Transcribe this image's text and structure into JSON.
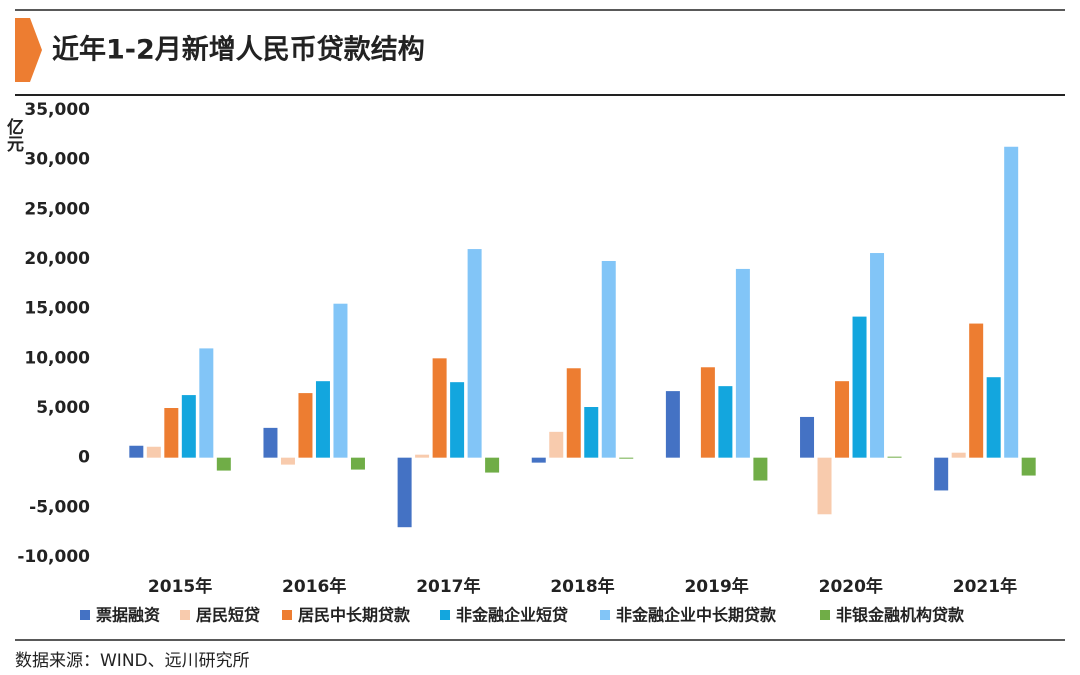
{
  "chart_data": {
    "type": "bar",
    "title": "近年1-2月新增人民币贷款结构",
    "y_label": "亿元",
    "source": "数据来源：WIND、远川研究所",
    "categories": [
      "2015年",
      "2016年",
      "2017年",
      "2018年",
      "2019年",
      "2020年",
      "2021年"
    ],
    "series": [
      {
        "name": "票据融资",
        "color": "#4472c4",
        "values": [
          1200,
          3000,
          -7000,
          -500,
          6700,
          4100,
          -3300
        ]
      },
      {
        "name": "居民短贷",
        "color": "#f8cbad",
        "values": [
          1100,
          -700,
          300,
          2600,
          0,
          -5700,
          500
        ]
      },
      {
        "name": "居民中长期贷款",
        "color": "#ed7d31",
        "values": [
          5000,
          6500,
          10000,
          9000,
          9100,
          7700,
          13500
        ]
      },
      {
        "name": "非金融企业短贷",
        "color": "#13a6de",
        "values": [
          6300,
          7700,
          7600,
          5100,
          7200,
          14200,
          8100
        ]
      },
      {
        "name": "非金融企业中长期贷款",
        "color": "#82c5f7",
        "values": [
          11000,
          15500,
          21000,
          19800,
          19000,
          20600,
          31300
        ]
      },
      {
        "name": "非银金融机构贷款",
        "color": "#70ad47",
        "values": [
          -1300,
          -1200,
          -1500,
          -100,
          -2300,
          100,
          -1800
        ]
      }
    ],
    "ylim": [
      -10000,
      35000
    ],
    "yticks": [
      {
        "value": -10000,
        "label": "-10,000"
      },
      {
        "value": -5000,
        "label": "-5,000"
      },
      0,
      {
        "value": 5000,
        "label": "5,000"
      },
      {
        "value": 10000,
        "label": "10,000"
      },
      {
        "value": 15000,
        "label": "15,000"
      },
      {
        "value": 20000,
        "label": "20,000"
      },
      {
        "value": 25000,
        "label": "25,000"
      },
      {
        "value": 30000,
        "label": "30,000"
      },
      {
        "value": 35000,
        "label": "35,000"
      }
    ],
    "grid": false
  }
}
